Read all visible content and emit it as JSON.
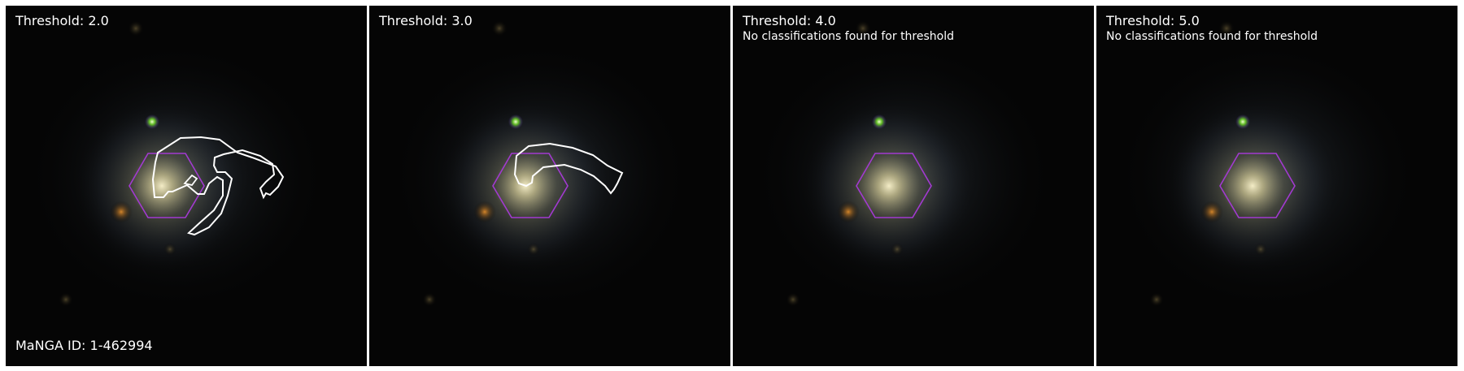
{
  "figure": {
    "panels": [
      {
        "title": "Threshold: 2.0",
        "message": "",
        "has_contour": true
      },
      {
        "title": "Threshold: 3.0",
        "message": "",
        "has_contour": true
      },
      {
        "title": "Threshold: 4.0",
        "message": "No classifications found for threshold",
        "has_contour": false
      },
      {
        "title": "Threshold: 5.0",
        "message": "No classifications found for threshold",
        "has_contour": false
      }
    ],
    "manga_id_label": "MaNGA ID: 1-462994"
  },
  "colors": {
    "background": "#050505",
    "galaxy_core": "#e6dcaa",
    "ifu_hexagon": "#a23ad0",
    "contour": "#ffffff",
    "panel_border": "#ffffff"
  }
}
